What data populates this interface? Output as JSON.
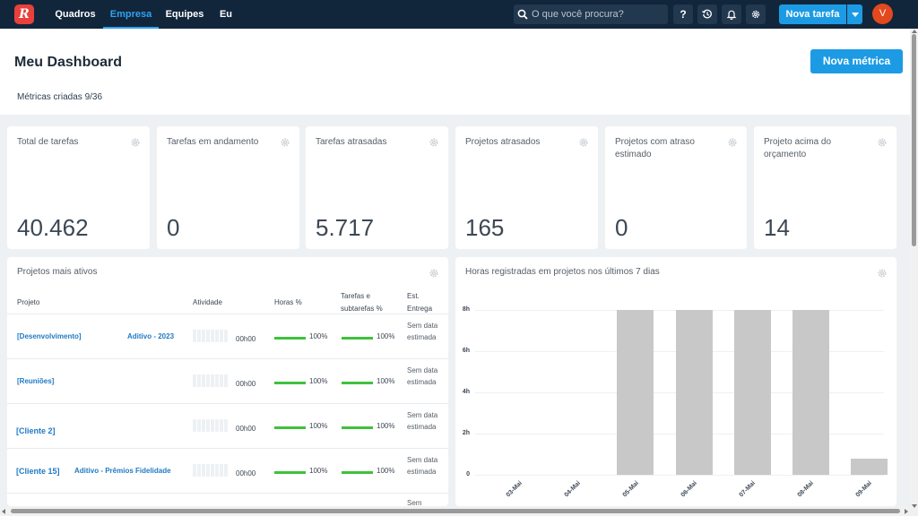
{
  "nav": {
    "logo": "R",
    "items": [
      "Quadros",
      "Empresa",
      "Equipes",
      "Eu"
    ],
    "active": "Empresa",
    "search_placeholder": "O que você procura?",
    "help": "?",
    "new_task": "Nova tarefa",
    "avatar": "V"
  },
  "header": {
    "title": "Meu Dashboard",
    "new_metric": "Nova métrica",
    "metrics_created": "Métricas criadas 9/36"
  },
  "cards": [
    {
      "label": "Total de tarefas",
      "value": "40.462"
    },
    {
      "label": "Tarefas em andamento",
      "value": "0"
    },
    {
      "label": "Tarefas atrasadas",
      "value": "5.717"
    },
    {
      "label": "Projetos atrasados",
      "value": "165"
    },
    {
      "label": "Projetos com atraso estimado",
      "value": "0"
    },
    {
      "label": "Projeto acima do orçamento",
      "value": "14"
    }
  ],
  "projects_table": {
    "title": "Projetos mais ativos",
    "headers": {
      "project": "Projeto",
      "activity": "Atividade",
      "hours_pct": "Horas %",
      "tasks_pct": "Tarefas e subtarefas %",
      "est_delivery": "Est. Entrega"
    },
    "rows": [
      {
        "project": "[Desenvolvimento]",
        "sub": "Aditivo - 2023",
        "hours": "00h00",
        "hours_pct": "100%",
        "tasks_pct": "100%",
        "est": "Sem data estimada"
      },
      {
        "project": "[Reuniões]",
        "sub": "",
        "hours": "00h00",
        "hours_pct": "100%",
        "tasks_pct": "100%",
        "est": "Sem data estimada"
      },
      {
        "project": "[Cliente 2]",
        "sub": "",
        "hours": "00h00",
        "hours_pct": "100%",
        "tasks_pct": "100%",
        "est": "Sem data estimada"
      },
      {
        "project": "[Cliente 15]",
        "sub": "Aditivo - Prêmios Fidelidade",
        "hours": "00h00",
        "hours_pct": "100%",
        "tasks_pct": "100%",
        "est": "Sem data estimada"
      },
      {
        "project": "",
        "sub": "",
        "hours": "",
        "hours_pct": "",
        "tasks_pct": "",
        "est": "Sem"
      }
    ]
  },
  "chart_panel": {
    "title": "Horas registradas em projetos nos últimos 7 dias"
  },
  "chart_data": {
    "type": "bar",
    "title": "Horas registradas em projetos nos últimos 7 dias",
    "categories": [
      "03-Mai",
      "04-Mai",
      "05-Mai",
      "06-Mai",
      "07-Mai",
      "08-Mai",
      "09-Mai"
    ],
    "values": [
      0,
      0,
      8,
      8,
      8,
      8,
      0.8
    ],
    "ylim": [
      0,
      8
    ],
    "yticks": [
      "0",
      "2h",
      "4h",
      "6h",
      "8h"
    ],
    "grid": true,
    "bar_color": "#c8c8c8"
  },
  "colors": {
    "navbar": "#12263b",
    "accent": "#1c9be4",
    "progress": "#3ec23b",
    "avatar": "#e3491e",
    "logo": "#e8413c"
  }
}
